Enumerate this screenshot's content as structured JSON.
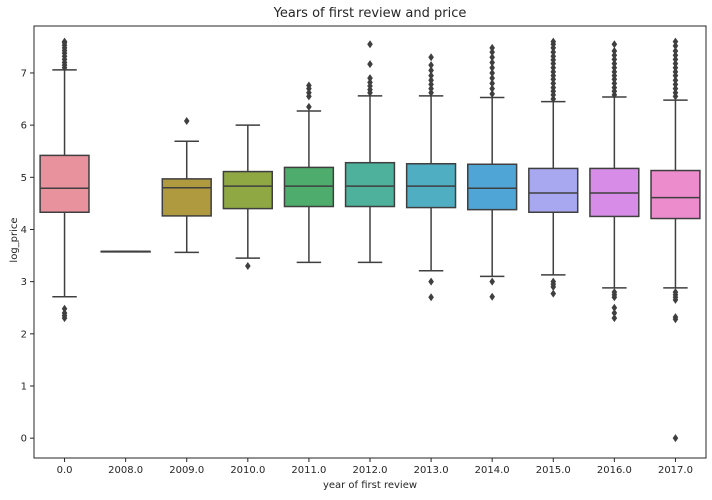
{
  "chart_data": {
    "type": "box",
    "title": "Years of first review and price",
    "xlabel": "year of first review",
    "ylabel": "log_price",
    "categories": [
      "0.0",
      "2008.0",
      "2009.0",
      "2010.0",
      "2011.0",
      "2012.0",
      "2013.0",
      "2014.0",
      "2015.0",
      "2016.0",
      "2017.0"
    ],
    "ylim": [
      -0.38,
      7.9
    ],
    "yticks": [
      0,
      1,
      2,
      3,
      4,
      5,
      6,
      7
    ],
    "grid": false,
    "colors": [
      "#e8929e",
      "#c8a77d",
      "#b09a3f",
      "#8fa843",
      "#4ead6c",
      "#4eb19b",
      "#50aec2",
      "#4fa5d6",
      "#a7a8ef",
      "#d78de8",
      "#ec8ccd"
    ],
    "boxes": [
      {
        "q1": 4.33,
        "median": 4.79,
        "q3": 5.42,
        "whisker_low": 2.71,
        "whisker_high": 7.06,
        "outliers": [
          2.3,
          2.35,
          2.4,
          2.48,
          7.1,
          7.15,
          7.2,
          7.26,
          7.32,
          7.38,
          7.43,
          7.48,
          7.53,
          7.58,
          7.6
        ]
      },
      {
        "q1": 3.58,
        "median": 3.58,
        "q3": 3.58,
        "whisker_low": 3.58,
        "whisker_high": 3.58,
        "outliers": []
      },
      {
        "q1": 4.26,
        "median": 4.8,
        "q3": 4.97,
        "whisker_low": 3.56,
        "whisker_high": 5.69,
        "outliers": [
          6.08
        ]
      },
      {
        "q1": 4.4,
        "median": 4.83,
        "q3": 5.11,
        "whisker_low": 3.45,
        "whisker_high": 6.0,
        "outliers": [
          3.3
        ]
      },
      {
        "q1": 4.44,
        "median": 4.83,
        "q3": 5.19,
        "whisker_low": 3.37,
        "whisker_high": 6.27,
        "outliers": [
          6.35,
          6.55,
          6.62,
          6.7,
          6.76
        ]
      },
      {
        "q1": 4.44,
        "median": 4.83,
        "q3": 5.28,
        "whisker_low": 3.37,
        "whisker_high": 6.56,
        "outliers": [
          6.62,
          6.68,
          6.75,
          6.82,
          6.9,
          7.17,
          7.55
        ]
      },
      {
        "q1": 4.42,
        "median": 4.83,
        "q3": 5.26,
        "whisker_low": 3.21,
        "whisker_high": 6.56,
        "outliers": [
          2.7,
          3.0,
          6.62,
          6.7,
          6.78,
          6.86,
          6.95,
          7.05,
          7.15,
          7.3
        ]
      },
      {
        "q1": 4.38,
        "median": 4.79,
        "q3": 5.25,
        "whisker_low": 3.1,
        "whisker_high": 6.53,
        "outliers": [
          2.71,
          3.0,
          6.6,
          6.7,
          6.8,
          6.9,
          7.0,
          7.1,
          7.2,
          7.3,
          7.4,
          7.48
        ]
      },
      {
        "q1": 4.33,
        "median": 4.7,
        "q3": 5.17,
        "whisker_low": 3.13,
        "whisker_high": 6.45,
        "outliers": [
          2.77,
          2.9,
          2.95,
          3.0,
          6.5,
          6.58,
          6.65,
          6.72,
          6.8,
          6.88,
          6.95,
          7.02,
          7.1,
          7.18,
          7.25,
          7.32,
          7.4,
          7.48,
          7.55,
          7.6
        ]
      },
      {
        "q1": 4.25,
        "median": 4.7,
        "q3": 5.17,
        "whisker_low": 2.88,
        "whisker_high": 6.54,
        "outliers": [
          2.3,
          2.4,
          2.5,
          2.7,
          2.75,
          2.8,
          6.58,
          6.65,
          6.72,
          6.8,
          6.88,
          6.95,
          7.02,
          7.1,
          7.18,
          7.26,
          7.34,
          7.42,
          7.55
        ]
      },
      {
        "q1": 4.21,
        "median": 4.61,
        "q3": 5.13,
        "whisker_low": 2.88,
        "whisker_high": 6.48,
        "outliers": [
          0.0,
          2.28,
          2.32,
          2.65,
          2.7,
          2.75,
          2.8,
          6.55,
          6.62,
          6.7,
          6.78,
          6.86,
          6.95,
          7.02,
          7.1,
          7.18,
          7.26,
          7.34,
          7.42,
          7.52,
          7.6
        ]
      }
    ]
  }
}
